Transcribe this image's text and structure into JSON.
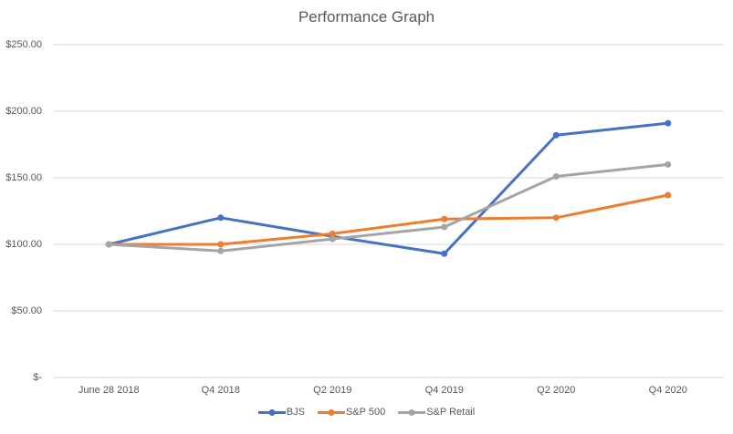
{
  "chart_data": {
    "type": "line",
    "title": "Performance Graph",
    "categories": [
      "June 28 2018",
      "Q4 2018",
      "Q2 2019",
      "Q4 2019",
      "Q2 2020",
      "Q4 2020"
    ],
    "series": [
      {
        "name": "BJS",
        "color": "#4472C4",
        "values": [
          100,
          120,
          106,
          93,
          182,
          191
        ]
      },
      {
        "name": "S&P 500",
        "color": "#ED7D31",
        "values": [
          100,
          100,
          108,
          119,
          120,
          137
        ]
      },
      {
        "name": "S&P Retail",
        "color": "#A5A5A5",
        "values": [
          100,
          95,
          104,
          113,
          151,
          160
        ]
      }
    ],
    "y_ticks": [
      "$250.00",
      "$200.00",
      "$150.00",
      "$100.00",
      "$50.00",
      "$-"
    ],
    "ylim": [
      0,
      250
    ],
    "y_step": 50,
    "xlabel": "",
    "ylabel": "",
    "grid": true,
    "legend_position": "bottom",
    "text_color": "#595959",
    "gridline_color": "#D9D9D9",
    "background_color": "#FFFFFF"
  }
}
